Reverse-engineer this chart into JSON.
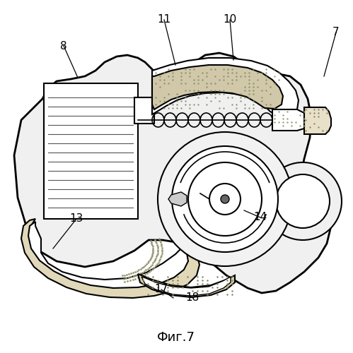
{
  "title": "Фиг.7",
  "background_color": "#ffffff",
  "line_color": "#000000",
  "fig_width": 4.99,
  "fig_height": 5.0,
  "dpi": 100
}
